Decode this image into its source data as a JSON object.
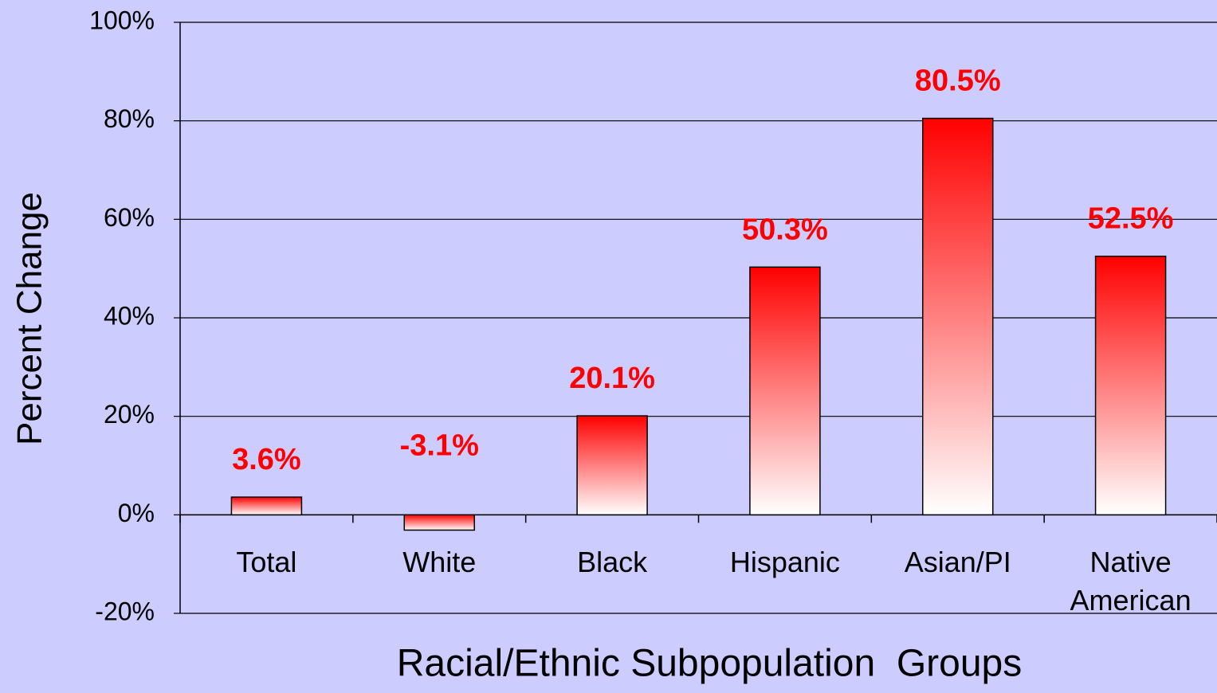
{
  "chart_data": {
    "type": "bar",
    "categories": [
      "Total",
      "White",
      "Black",
      "Hispanic",
      "Asian/PI",
      "Native American"
    ],
    "values": [
      3.6,
      -3.1,
      20.1,
      50.3,
      80.5,
      52.5
    ],
    "value_labels": [
      "3.6%",
      "-3.1%",
      "20.1%",
      "50.3%",
      "80.5%",
      "52.5%"
    ],
    "color": "#ff0000",
    "ylim": [
      -20,
      100
    ],
    "yticks": [
      {
        "value": -20,
        "label": "-20%"
      },
      {
        "value": 0,
        "label": "0%"
      },
      {
        "value": 20,
        "label": "20%"
      },
      {
        "value": 40,
        "label": "40%"
      },
      {
        "value": 60,
        "label": "60%"
      },
      {
        "value": 80,
        "label": "80%"
      },
      {
        "value": 100,
        "label": "100%"
      }
    ],
    "y_label": "Percent Change",
    "x_label": "Racial/Ethnic Subpopulation  Groups",
    "grid": true
  }
}
